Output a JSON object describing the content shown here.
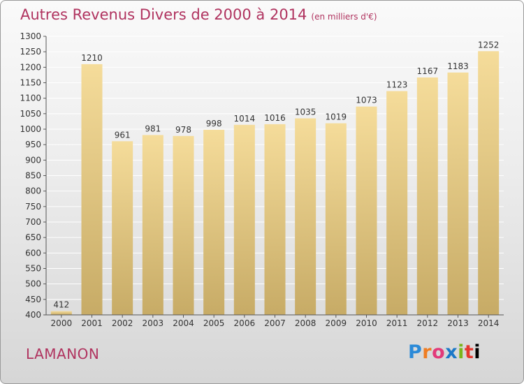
{
  "title": {
    "main": "Autres Revenus Divers de 2000 à 2014",
    "unit": "(en milliers d'€)"
  },
  "place": "LAMANON",
  "brand": {
    "letters": [
      "P",
      "r",
      "o",
      "x",
      "i",
      "t",
      "i"
    ]
  },
  "chart_data": {
    "type": "bar",
    "categories": [
      "2000",
      "2001",
      "2002",
      "2003",
      "2004",
      "2005",
      "2006",
      "2007",
      "2008",
      "2009",
      "2010",
      "2011",
      "2012",
      "2013",
      "2014"
    ],
    "values": [
      412,
      1210,
      961,
      981,
      978,
      998,
      1014,
      1016,
      1035,
      1019,
      1073,
      1123,
      1167,
      1183,
      1252
    ],
    "ylim": [
      400,
      1300
    ],
    "yticks": [
      400,
      450,
      500,
      550,
      600,
      650,
      700,
      750,
      800,
      850,
      900,
      950,
      1000,
      1050,
      1100,
      1150,
      1200,
      1250,
      1300
    ],
    "grid": true,
    "colors": {
      "bar_top": "#f5dc9a",
      "bar_bottom": "#c7ab66",
      "grid": "#ffffff",
      "title": "#b0335f"
    }
  }
}
